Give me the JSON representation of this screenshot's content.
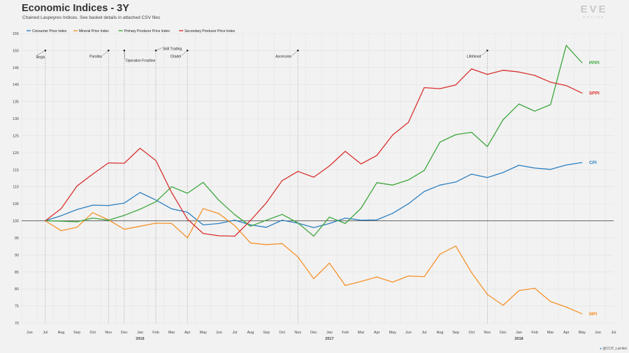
{
  "header": {
    "title": "Economic Indices - 3Y",
    "subtitle": "Chained Laspeyres Indices. See basket details in attached CSV files"
  },
  "logo": {
    "text": "EVE",
    "subtext": "ONLINE"
  },
  "credit": {
    "icon": "twitter-icon",
    "text": "@CCP_Larrikin"
  },
  "chart_data": {
    "type": "line",
    "title": "Economic Indices - 3Y",
    "subtitle": "Chained Laspeyres Indices. See basket details in attached CSV files",
    "xlabel": "",
    "ylabel": "",
    "ylim": [
      70,
      155
    ],
    "yticks": [
      70,
      75,
      80,
      85,
      90,
      95,
      100,
      105,
      110,
      115,
      120,
      125,
      130,
      135,
      140,
      145,
      150,
      155
    ],
    "grid": true,
    "legend_position": "top-left",
    "baseline": 100,
    "x_tick_labels": [
      "Jun",
      "Jul",
      "Aug",
      "Sep",
      "Oct",
      "Nov",
      "Dec",
      "Jan",
      "Feb",
      "Mar",
      "Apr",
      "May",
      "Jun",
      "Jul",
      "Aug",
      "Sep",
      "Oct",
      "Nov",
      "Dec",
      "Jan",
      "Feb",
      "Mar",
      "Apr",
      "May",
      "Jun",
      "Jul",
      "Aug",
      "Sep",
      "Oct",
      "Nov",
      "Dec",
      "Jan",
      "Feb",
      "Mar",
      "Apr",
      "May",
      "Jun",
      "Jul"
    ],
    "year_labels": [
      {
        "label": "2016",
        "month_index": 7
      },
      {
        "label": "2017",
        "month_index": 19
      },
      {
        "label": "2018",
        "month_index": 31
      }
    ],
    "x": [
      "Jul 2015",
      "Aug 2015",
      "Sep 2015",
      "Oct 2015",
      "Nov 2015",
      "Dec 2015",
      "Jan 2016",
      "Feb 2016",
      "Mar 2016",
      "Apr 2016",
      "May 2016",
      "Jun 2016",
      "Jul 2016",
      "Aug 2016",
      "Sep 2016",
      "Oct 2016",
      "Nov 2016",
      "Dec 2016",
      "Jan 2017",
      "Feb 2017",
      "Mar 2017",
      "Apr 2017",
      "May 2017",
      "Jun 2017",
      "Jul 2017",
      "Aug 2017",
      "Sep 2017",
      "Oct 2017",
      "Nov 2017",
      "Dec 2017",
      "Jan 2018",
      "Feb 2018",
      "Mar 2018",
      "Apr 2018",
      "May 2018"
    ],
    "series": [
      {
        "name": "Consumer Price Index",
        "short": "CPI",
        "color": "#2c7fc0",
        "values": [
          100,
          101.5,
          103.3,
          104.6,
          104.5,
          105.2,
          108.3,
          106.1,
          103.5,
          102.5,
          98.8,
          99.2,
          100.2,
          98.8,
          98.1,
          100.2,
          99.3,
          98,
          99.2,
          100.8,
          100.2,
          100.3,
          102.2,
          105,
          108.6,
          110.5,
          111.4,
          113.7,
          112.7,
          114.2,
          116.3,
          115.5,
          115.1,
          116.4,
          117.1
        ]
      },
      {
        "name": "Mineral Price Index",
        "short": "MPI",
        "color": "#f5922b",
        "values": [
          100,
          97.1,
          98.1,
          102.4,
          100.3,
          97.5,
          98.4,
          99.3,
          99.2,
          95,
          103.6,
          102.1,
          98.6,
          93.5,
          93,
          93.3,
          89.4,
          83,
          87.6,
          81,
          82.2,
          83.5,
          82,
          83.8,
          83.6,
          90.2,
          92.6,
          84.8,
          78.4,
          75.2,
          79.5,
          80.2,
          76.3,
          74.7,
          72.7
        ]
      },
      {
        "name": "Primary Producer Price Index",
        "short": "PPPI",
        "color": "#3ca63c",
        "values": [
          100,
          99.9,
          99.7,
          100.8,
          100.2,
          101.6,
          103.4,
          105.6,
          110,
          108.1,
          111.3,
          106,
          101.8,
          98.4,
          100.2,
          101.9,
          99.4,
          95.5,
          101.1,
          99.2,
          103.7,
          111.2,
          110.5,
          112,
          114.8,
          123.1,
          125.3,
          126,
          121.8,
          129.7,
          134.3,
          132.2,
          134.1,
          151.5,
          146.4
        ]
      },
      {
        "name": "Secondary Producer Price Index",
        "short": "SPPI",
        "color": "#d8302d",
        "values": [
          100,
          103.6,
          110.2,
          113.7,
          117,
          116.9,
          121.3,
          117.7,
          108.3,
          100.5,
          96.3,
          95.6,
          95.5,
          100.1,
          105.3,
          111.8,
          114.5,
          112.8,
          116.1,
          120.4,
          116.7,
          119.2,
          125.2,
          128.9,
          139.1,
          138.8,
          139.9,
          144.6,
          143,
          144.2,
          143.7,
          142.7,
          140.7,
          139.7,
          137.5
        ]
      }
    ],
    "events": [
      {
        "label": "Aegis",
        "month_index": 1
      },
      {
        "label": "Parallax",
        "month_index": 5
      },
      {
        "label": "Operation Frostline",
        "month_index": 6
      },
      {
        "label": "Skill Trading",
        "month_index": 8
      },
      {
        "label": "Citadel",
        "month_index": 10
      },
      {
        "label": "Ascension",
        "month_index": 17
      },
      {
        "label": "Lifeblood",
        "month_index": 29
      }
    ]
  }
}
